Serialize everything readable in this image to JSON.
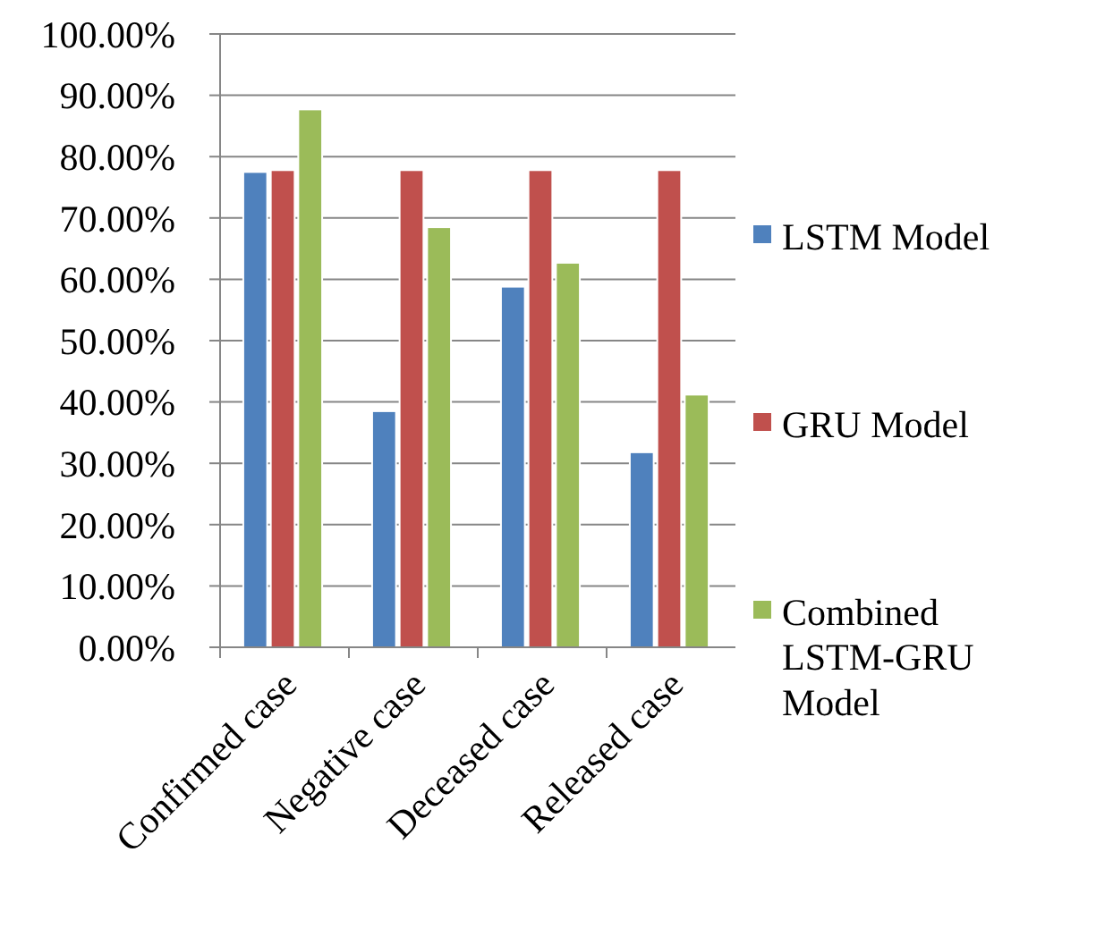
{
  "chart_data": {
    "type": "bar",
    "categories": [
      "Confirmed case",
      "Negative case",
      "Deceased case",
      "Released case"
    ],
    "series": [
      {
        "name": "LSTM Model",
        "color": "#4f81bd",
        "values": [
          77.5,
          38.5,
          58.8,
          31.8
        ]
      },
      {
        "name": "GRU Model",
        "color": "#c0504d",
        "values": [
          77.8,
          77.8,
          77.8,
          77.8
        ]
      },
      {
        "name": "Combined LSTM-GRU Model",
        "color": "#9bbb59",
        "values": [
          87.7,
          68.5,
          62.7,
          41.2
        ]
      }
    ],
    "ylim": [
      0,
      100
    ],
    "yticks": [
      {
        "value": 0,
        "label": "0.00%"
      },
      {
        "value": 10,
        "label": "10.00%"
      },
      {
        "value": 20,
        "label": "20.00%"
      },
      {
        "value": 30,
        "label": "30.00%"
      },
      {
        "value": 40,
        "label": "40.00%"
      },
      {
        "value": 50,
        "label": "50.00%"
      },
      {
        "value": 60,
        "label": "60.00%"
      },
      {
        "value": 70,
        "label": "70.00%"
      },
      {
        "value": 80,
        "label": "80.00%"
      },
      {
        "value": 90,
        "label": "90.00%"
      },
      {
        "value": 100,
        "label": "100.00%"
      }
    ],
    "grid": "y",
    "legend": "right"
  }
}
